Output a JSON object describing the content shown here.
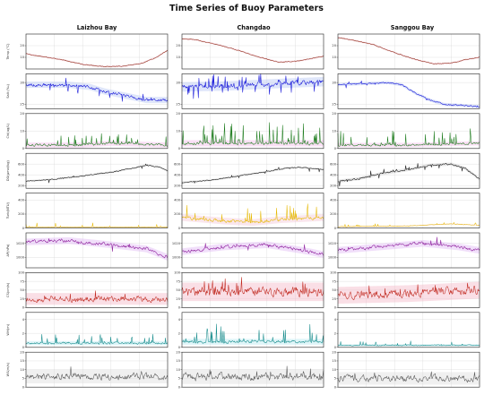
{
  "title": "Time Series of Buoy Parameters",
  "stations": [
    "Laizhou Bay",
    "Changdao",
    "Sanggou Bay"
  ],
  "chart_data": {
    "type": "line",
    "title": "Time Series of Buoy Parameters",
    "columns": [
      "Laizhou Bay",
      "Changdao",
      "Sanggou Bay"
    ],
    "rows": [
      {
        "ylabel": "Temp (°C)",
        "color": "#8b2e16",
        "band": "#f5b8cc",
        "ylim": [
          0,
          30
        ],
        "ticks": [
          10,
          20
        ],
        "series": {
          "Laizhou Bay": {
            "shape": [
              [
                0,
                13
              ],
              [
                0.1,
                11
              ],
              [
                0.25,
                8
              ],
              [
                0.4,
                4
              ],
              [
                0.55,
                2
              ],
              [
                0.7,
                2.5
              ],
              [
                0.82,
                5
              ],
              [
                0.92,
                10
              ],
              [
                1,
                16
              ]
            ],
            "noise": 0.6
          },
          "Changdao": {
            "shape": [
              [
                0,
                26
              ],
              [
                0.1,
                25
              ],
              [
                0.25,
                21
              ],
              [
                0.4,
                16
              ],
              [
                0.55,
                10
              ],
              [
                0.68,
                6
              ],
              [
                0.8,
                6.5
              ],
              [
                0.9,
                8.5
              ],
              [
                1,
                11
              ]
            ],
            "noise": 0.6
          },
          "Sanggou Bay": {
            "shape": [
              [
                0,
                27
              ],
              [
                0.1,
                25
              ],
              [
                0.25,
                21
              ],
              [
                0.4,
                14
              ],
              [
                0.55,
                8
              ],
              [
                0.68,
                4.5
              ],
              [
                0.8,
                5
              ],
              [
                0.9,
                8
              ],
              [
                1,
                10
              ]
            ],
            "noise": 0.6
          }
        }
      },
      {
        "ylabel": "Salt (‰)",
        "color": "#1010d8",
        "band": "#b8c8f5",
        "ylim": [
          24,
          32
        ],
        "ticks": [
          25,
          30
        ],
        "series": {
          "Laizhou Bay": {
            "shape": [
              [
                0,
                29.5
              ],
              [
                0.3,
                29.5
              ],
              [
                0.45,
                29
              ],
              [
                0.55,
                28
              ],
              [
                0.7,
                27
              ],
              [
                0.85,
                26
              ],
              [
                1,
                26
              ]
            ],
            "noise": 0.6,
            "spikes": 0.08
          },
          "Changdao": {
            "shape": [
              [
                0,
                29
              ],
              [
                0.3,
                29.2
              ],
              [
                0.5,
                29.5
              ],
              [
                0.7,
                29.8
              ],
              [
                0.85,
                30
              ],
              [
                1,
                30.2
              ]
            ],
            "noise": 0.9,
            "spikes": 0.12
          },
          "Sanggou Bay": {
            "shape": [
              [
                0,
                29.5
              ],
              [
                0.35,
                30
              ],
              [
                0.45,
                29.5
              ],
              [
                0.55,
                27.5
              ],
              [
                0.65,
                26
              ],
              [
                0.75,
                25
              ],
              [
                1,
                24.5
              ]
            ],
            "noise": 0.3,
            "spikes": 0.05
          }
        }
      },
      {
        "ylabel": "Chl(ug/L)",
        "color": "#1a7a1a",
        "band": "#f5b8e8",
        "ylim": [
          0,
          20
        ],
        "ticks": [
          0,
          10,
          20
        ],
        "series": {
          "Laizhou Bay": {
            "shape": [
              [
                0,
                2
              ],
              [
                0.4,
                2
              ],
              [
                0.6,
                3
              ],
              [
                1,
                2
              ]
            ],
            "noise": 1.2,
            "spikes": 0.1,
            "spikeMag": 6
          },
          "Changdao": {
            "shape": [
              [
                0,
                3
              ],
              [
                0.5,
                3
              ],
              [
                1,
                3
              ]
            ],
            "noise": 1.5,
            "spikes": 0.15,
            "spikeMag": 12
          },
          "Sanggou Bay": {
            "shape": [
              [
                0,
                2
              ],
              [
                0.5,
                2
              ],
              [
                1,
                3
              ]
            ],
            "noise": 1.0,
            "spikes": 0.1,
            "spikeMag": 8
          }
        }
      },
      {
        "ylabel": "DO(μmol/kg)",
        "color": "#111111",
        "band": "#cccccc",
        "ylim": [
          150,
          800
        ],
        "ticks": [
          200,
          400,
          600
        ],
        "series": {
          "Laizhou Bay": {
            "shape": [
              [
                0,
                280
              ],
              [
                0.2,
                320
              ],
              [
                0.4,
                380
              ],
              [
                0.6,
                450
              ],
              [
                0.75,
                520
              ],
              [
                0.85,
                580
              ],
              [
                0.95,
                540
              ],
              [
                1,
                470
              ]
            ],
            "noise": 15,
            "spikes": 0.05,
            "spikeMag": 60
          },
          "Changdao": {
            "shape": [
              [
                0,
                260
              ],
              [
                0.2,
                300
              ],
              [
                0.4,
                380
              ],
              [
                0.6,
                460
              ],
              [
                0.75,
                530
              ],
              [
                0.85,
                540
              ],
              [
                1,
                500
              ]
            ],
            "noise": 15,
            "spikes": 0.05,
            "spikeMag": 60
          },
          "Sanggou Bay": {
            "shape": [
              [
                0,
                280
              ],
              [
                0.15,
                330
              ],
              [
                0.3,
                420
              ],
              [
                0.5,
                500
              ],
              [
                0.65,
                580
              ],
              [
                0.8,
                600
              ],
              [
                0.9,
                520
              ],
              [
                1,
                320
              ]
            ],
            "noise": 25,
            "spikes": 0.08,
            "spikeMag": 90
          }
        }
      },
      {
        "ylabel": "Turb(NTU)",
        "color": "#e6b800",
        "band": "#f5c8d8",
        "ylim": [
          0,
          500
        ],
        "ticks": [
          0,
          200,
          400
        ],
        "series": {
          "Laizhou Bay": {
            "shape": [
              [
                0,
                15
              ],
              [
                1,
                15
              ]
            ],
            "noise": 5,
            "spikes": 0.06,
            "spikeMag": 60
          },
          "Changdao": {
            "shape": [
              [
                0,
                150
              ],
              [
                0.3,
                100
              ],
              [
                0.5,
                80
              ],
              [
                0.7,
                120
              ],
              [
                1,
                150
              ]
            ],
            "noise": 40,
            "spikes": 0.12,
            "spikeMag": 220
          },
          "Sanggou Bay": {
            "shape": [
              [
                0,
                20
              ],
              [
                0.5,
                30
              ],
              [
                0.8,
                60
              ],
              [
                1,
                40
              ]
            ],
            "noise": 6,
            "spikes": 0.06,
            "spikeMag": 40
          }
        }
      },
      {
        "ylabel": "AP(hPa)",
        "color": "#8b1a9a",
        "band": "#e0b8f5",
        "ylim": [
          985,
          1035
        ],
        "ticks": [
          1000,
          1020
        ],
        "series": {
          "Laizhou Bay": {
            "shape": [
              [
                0,
                1022
              ],
              [
                0.3,
                1024
              ],
              [
                0.6,
                1018
              ],
              [
                0.85,
                1012
              ],
              [
                1,
                1000
              ]
            ],
            "noise": 4,
            "spikes": 0.03,
            "spikeMag": 10
          },
          "Changdao": {
            "shape": [
              [
                0,
                1008
              ],
              [
                0.3,
                1015
              ],
              [
                0.6,
                1018
              ],
              [
                0.85,
                1010
              ],
              [
                1,
                1004
              ]
            ],
            "noise": 4,
            "spikes": 0.03,
            "spikeMag": 10
          },
          "Sanggou Bay": {
            "shape": [
              [
                0,
                1010
              ],
              [
                0.3,
                1015
              ],
              [
                0.6,
                1020
              ],
              [
                0.85,
                1015
              ],
              [
                1,
                1010
              ]
            ],
            "noise": 4,
            "spikes": 0.03,
            "spikeMag": 10
          }
        }
      },
      {
        "ylabel": "CS(cm/s)",
        "color": "#c0281e",
        "band": "#f5b8c8",
        "ylim": [
          0,
          100
        ],
        "ticks": [
          0,
          25,
          50,
          75,
          100
        ],
        "series": {
          "Laizhou Bay": {
            "shape": [
              [
                0,
                25
              ],
              [
                1,
                25
              ]
            ],
            "noise": 14,
            "spikes": 0.03,
            "spikeMag": 25
          },
          "Changdao": {
            "shape": [
              [
                0,
                45
              ],
              [
                1,
                45
              ]
            ],
            "noise": 22,
            "spikes": 0.05,
            "spikeMag": 30
          },
          "Sanggou Bay": {
            "shape": [
              [
                0,
                35
              ],
              [
                0.5,
                40
              ],
              [
                1,
                50
              ]
            ],
            "noise": 20,
            "spikes": 0.06,
            "spikeMag": 35
          }
        }
      },
      {
        "ylabel": "WH(m)",
        "color": "#138a8a",
        "band": "#b8e8f0",
        "ylim": [
          0,
          5
        ],
        "ticks": [
          0,
          2,
          4
        ],
        "series": {
          "Laizhou Bay": {
            "shape": [
              [
                0,
                0.6
              ],
              [
                1,
                0.6
              ]
            ],
            "noise": 0.25,
            "spikes": 0.1,
            "spikeMag": 1.5
          },
          "Changdao": {
            "shape": [
              [
                0,
                0.8
              ],
              [
                1,
                0.8
              ]
            ],
            "noise": 0.35,
            "spikes": 0.12,
            "spikeMag": 2.5
          },
          "Sanggou Bay": {
            "shape": [
              [
                0,
                0.3
              ],
              [
                1,
                0.3
              ]
            ],
            "noise": 0.12,
            "spikes": 0.05,
            "spikeMag": 0.6
          }
        }
      },
      {
        "ylabel": "WS(m/s)",
        "color": "#555555",
        "band": "#dddddd",
        "ylim": [
          0,
          20
        ],
        "ticks": [
          0,
          5,
          10,
          15,
          20
        ],
        "series": {
          "Laizhou Bay": {
            "shape": [
              [
                0,
                6
              ],
              [
                1,
                6
              ]
            ],
            "noise": 3.2,
            "spikes": 0.03,
            "spikeMag": 4
          },
          "Changdao": {
            "shape": [
              [
                0,
                6
              ],
              [
                1,
                6
              ]
            ],
            "noise": 3.5,
            "spikes": 0.03,
            "spikeMag": 5
          },
          "Sanggou Bay": {
            "shape": [
              [
                0,
                5
              ],
              [
                1,
                5
              ]
            ],
            "noise": 3.0,
            "spikes": 0.03,
            "spikeMag": 4
          }
        }
      }
    ]
  }
}
